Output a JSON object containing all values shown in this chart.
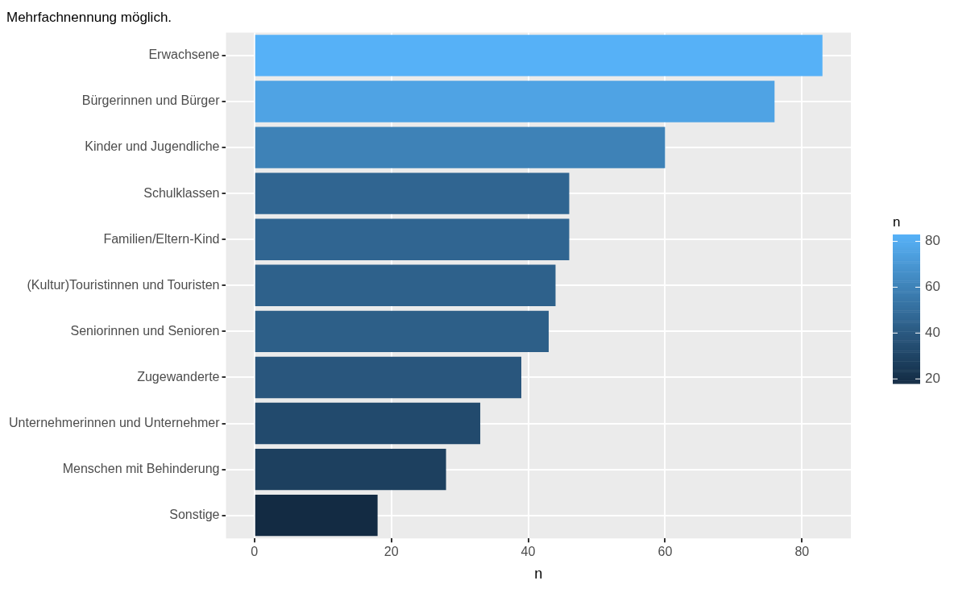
{
  "chart_data": {
    "type": "bar",
    "orientation": "horizontal",
    "title": "Mehrfachnennung möglich.",
    "xlabel": "n",
    "clabel": "n",
    "categories": [
      "Erwachsene",
      "Bürgerinnen und Bürger",
      "Kinder und Jugendliche",
      "Schulklassen",
      "Familien/Eltern-Kind",
      "(Kultur)Touristinnen und Touristen",
      "Seniorinnen und Senioren",
      "Zugewanderte",
      "Unternehmerinnen und Unternehmer",
      "Menschen mit Behinderung",
      "Sonstige"
    ],
    "values": [
      83,
      76,
      60,
      46,
      46,
      44,
      43,
      39,
      33,
      28,
      18
    ],
    "colors": [
      "#56b1f7",
      "#4fa3e4",
      "#3e82b7",
      "#306591",
      "#306591",
      "#2e618b",
      "#2d5f88",
      "#29567d",
      "#224a6d",
      "#1d405f",
      "#132b43"
    ],
    "xlim": [
      -4.15,
      87.15
    ],
    "xticks": [
      0,
      20,
      40,
      60,
      80
    ],
    "clim": [
      18,
      83
    ],
    "cticks": [
      20,
      40,
      60,
      80
    ],
    "grid": true,
    "legend": false
  }
}
